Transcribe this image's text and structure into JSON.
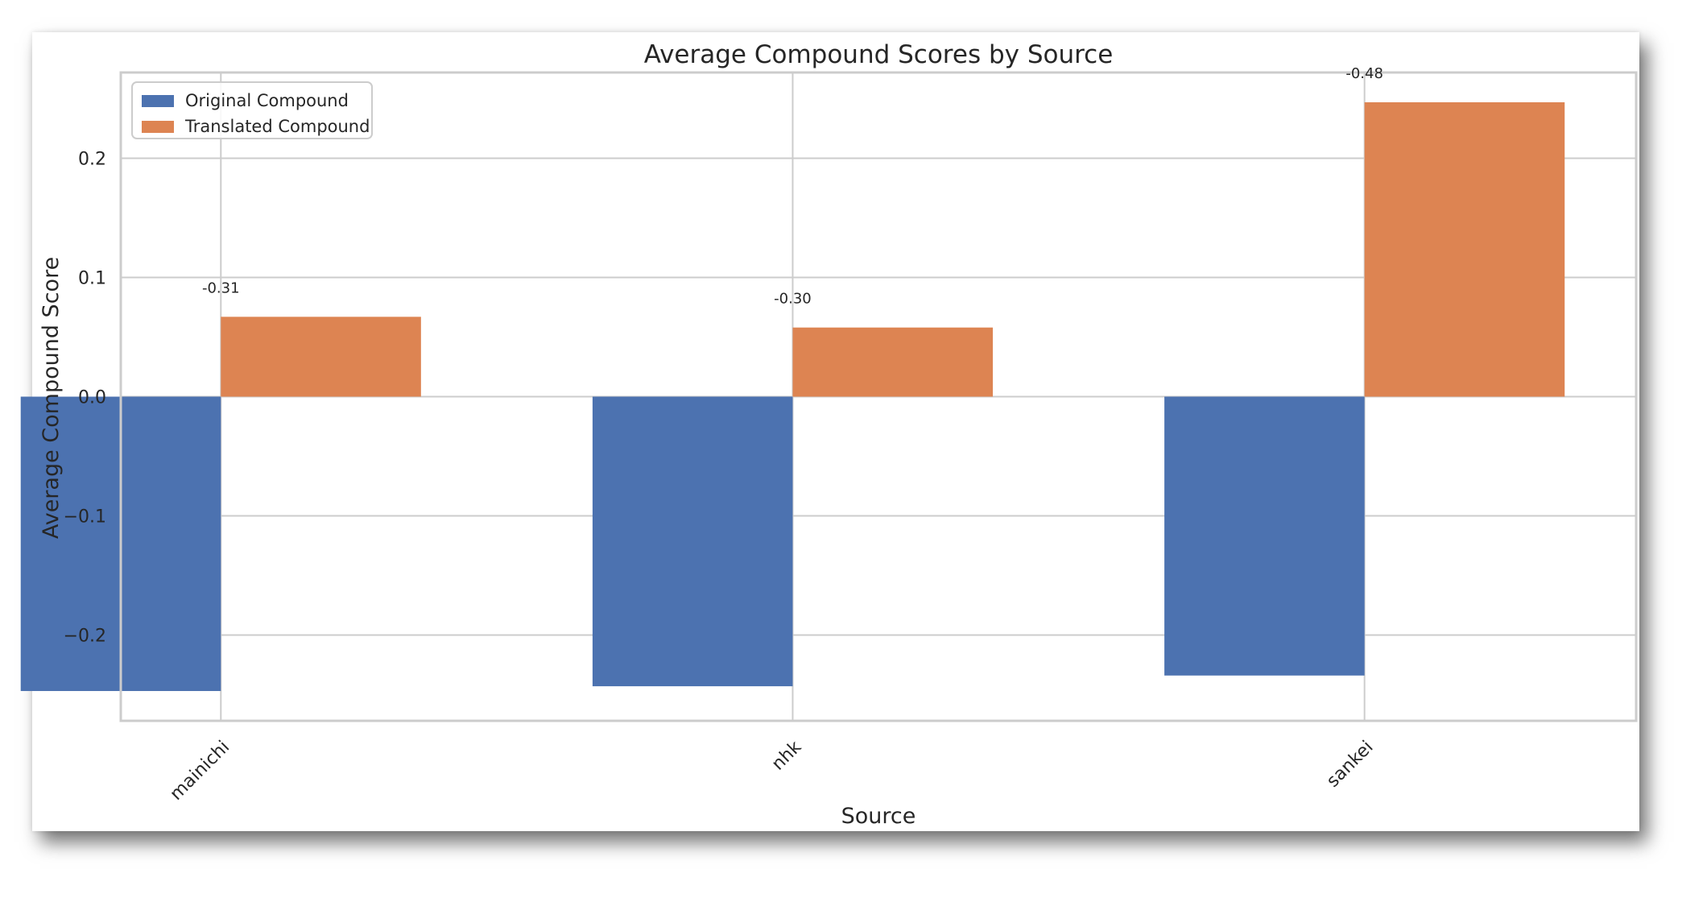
{
  "chart_data": {
    "type": "bar",
    "title": "Average Compound Scores by Source",
    "xlabel": "Source",
    "ylabel": "Average Compound Score",
    "categories": [
      "mainichi",
      "nhk",
      "sankei"
    ],
    "series": [
      {
        "name": "Original Compound",
        "values": [
          -0.247,
          -0.243,
          -0.234
        ],
        "color": "#4c72b0"
      },
      {
        "name": "Translated Compound",
        "values": [
          0.067,
          0.058,
          0.247
        ],
        "color": "#dd8452"
      }
    ],
    "bar_labels": [
      "-0.31",
      "-0.30",
      "-0.48"
    ],
    "ylim": [
      -0.272,
      0.272
    ],
    "yticks": [
      -0.2,
      -0.1,
      0.0,
      0.1,
      0.2
    ],
    "ytick_labels": [
      "−0.2",
      "−0.1",
      "0.0",
      "0.1",
      "0.2"
    ],
    "grid": true,
    "legend_position": "top-left"
  }
}
